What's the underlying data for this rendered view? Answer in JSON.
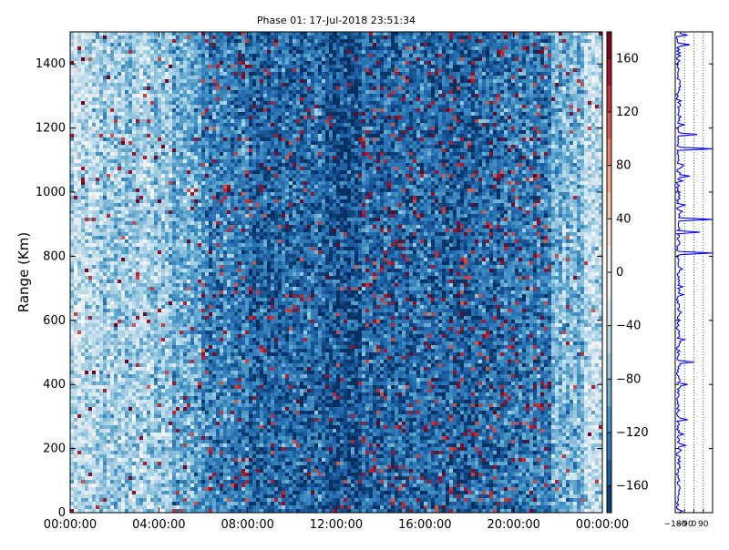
{
  "chart_data": [
    {
      "type": "heatmap",
      "title": "Phase 01: 17-Jul-2018 23:51:34",
      "xlabel": "",
      "ylabel": "Range (Km)",
      "xlim": [
        "00:00:00",
        "24:00:00"
      ],
      "ylim": [
        0,
        1500
      ],
      "x_ticks": [
        "00:00:00",
        "04:00:00",
        "08:00:00",
        "12:00:00",
        "16:00:00",
        "20:00:00",
        "00:00:00"
      ],
      "y_ticks": [
        0,
        200,
        400,
        600,
        800,
        1000,
        1200,
        1400
      ],
      "value_range": [
        -180,
        180
      ],
      "colorbar": {
        "ticks": [
          160,
          120,
          80,
          40,
          0,
          -40,
          -80,
          -120,
          -160
        ],
        "tick_labels": [
          "160",
          "120",
          "80",
          "40",
          "0",
          "−40",
          "−80",
          "−120",
          "−160"
        ],
        "colormap": "RdBu_r",
        "levels": 18
      },
      "grid": false
    },
    {
      "type": "line",
      "title": "",
      "xlabel": "",
      "ylabel": "",
      "xlim": [
        -180,
        180
      ],
      "ylim": [
        0,
        1500
      ],
      "x_ticks": [
        -180,
        -90,
        0,
        90
      ],
      "x_tick_labels": [
        "−180",
        "−90",
        "0",
        "90"
      ],
      "grid": "vertical dotted",
      "series": [
        {
          "color": "#0000ff",
          "typical_value": -150,
          "spikes": [
            {
              "y": 1135,
              "x": 180
            },
            {
              "y": 915,
              "x": 180
            },
            {
              "y": 810,
              "x": 180
            },
            {
              "y": 875,
              "x": 60
            },
            {
              "y": 1180,
              "x": 30
            },
            {
              "y": 1490,
              "x": -60
            },
            {
              "y": 1050,
              "x": -40
            },
            {
              "y": 1460,
              "x": -40
            },
            {
              "y": 470,
              "x": 0
            },
            {
              "y": 400,
              "x": -60
            },
            {
              "y": 290,
              "x": -60
            },
            {
              "y": 210,
              "x": -80
            },
            {
              "y": 540,
              "x": -90
            },
            {
              "y": 680,
              "x": -100
            }
          ]
        }
      ]
    }
  ],
  "colors": {
    "colormap_stops": [
      "#053061",
      "#2166ac",
      "#4393c3",
      "#92c5de",
      "#d1e5f0",
      "#f7f7f7",
      "#fddbc7",
      "#f4a582",
      "#d6604d",
      "#b2182b",
      "#67001f"
    ],
    "profile_line": "#0000ff",
    "axes": "#000000"
  }
}
